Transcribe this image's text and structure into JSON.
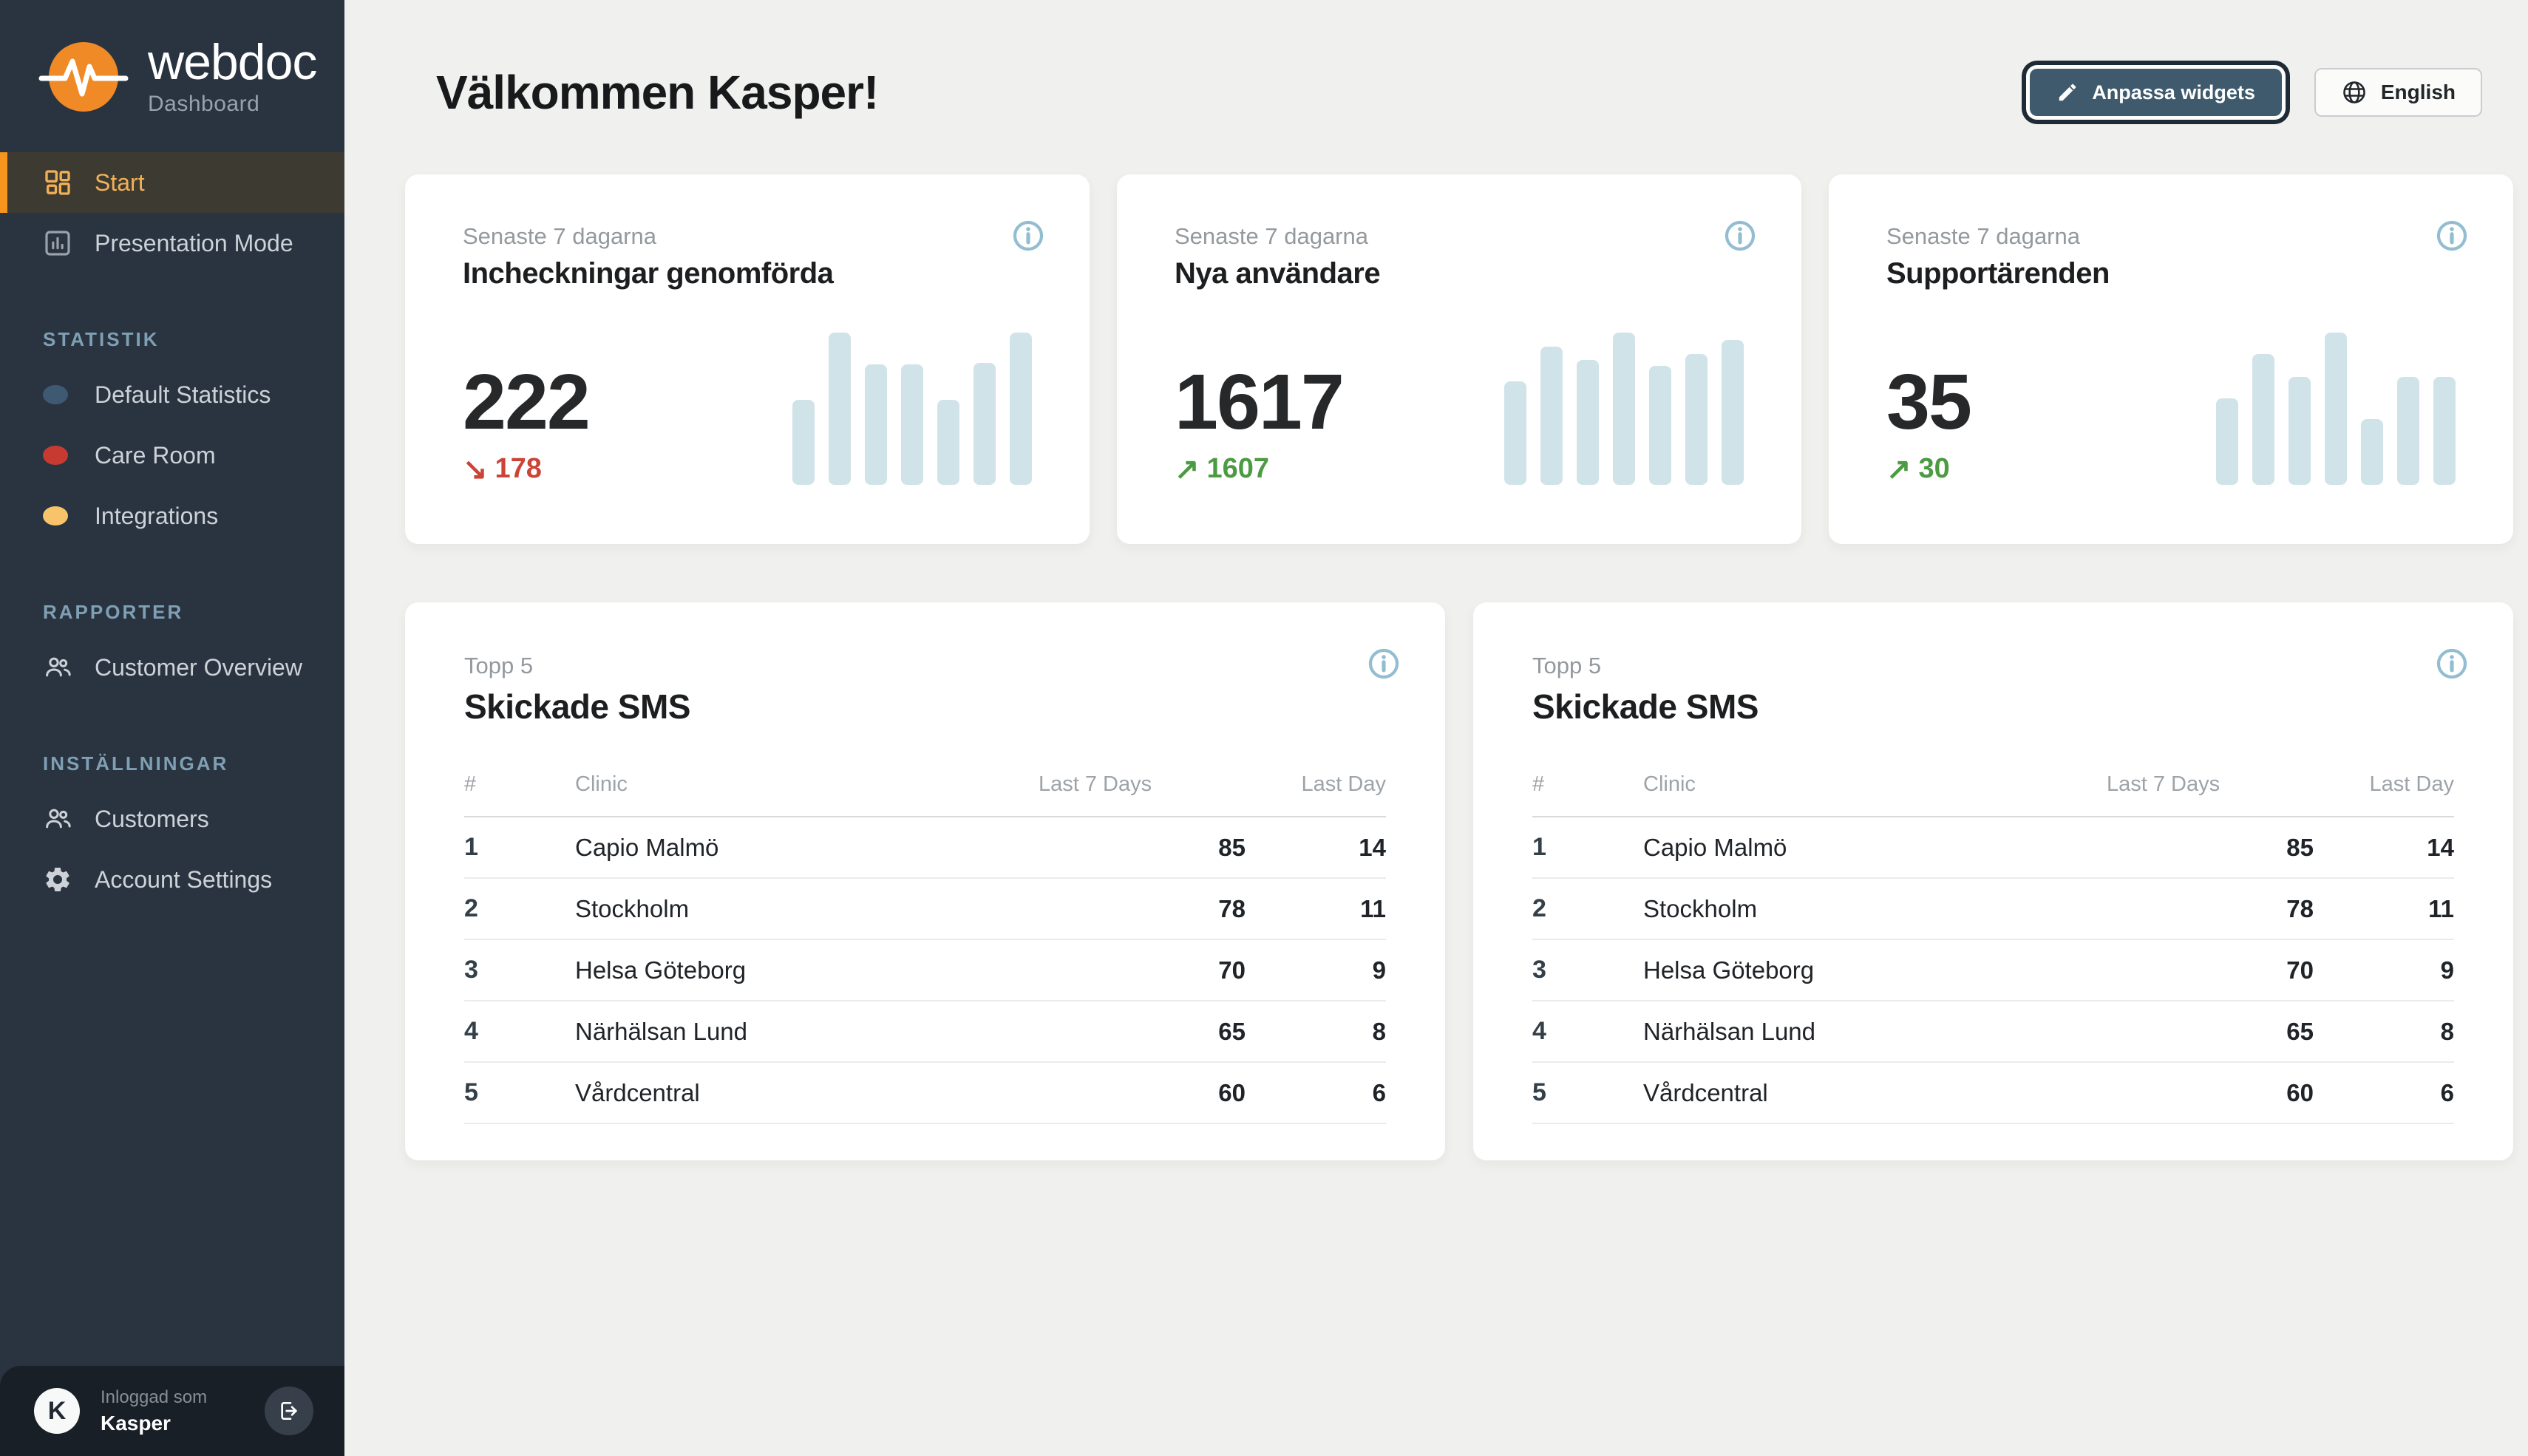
{
  "sidebar": {
    "brand": {
      "name": "webdoc",
      "subtitle": "Dashboard"
    },
    "nav": [
      {
        "label": "Start",
        "icon": "grid-icon",
        "active": true
      },
      {
        "label": "Presentation Mode",
        "icon": "chart-square-icon",
        "active": false
      }
    ],
    "sections": [
      {
        "title": "STATISTIK",
        "items": [
          {
            "label": "Default Statistics",
            "icon": "dot",
            "dot_color": "#3e5a72"
          },
          {
            "label": "Care Room",
            "icon": "dot",
            "dot_color": "#c63a32"
          },
          {
            "label": "Integrations",
            "icon": "dot",
            "dot_color": "#f9c469"
          }
        ]
      },
      {
        "title": "RAPPORTER",
        "items": [
          {
            "label": "Customer Overview",
            "icon": "people-icon"
          }
        ]
      },
      {
        "title": "INSTÄLLNINGAR",
        "items": [
          {
            "label": "Customers",
            "icon": "people-icon"
          },
          {
            "label": "Account Settings",
            "icon": "gear-icon"
          }
        ]
      }
    ],
    "footer": {
      "avatar_initial": "K",
      "logged_in_label": "Inloggad som",
      "username": "Kasper"
    }
  },
  "header": {
    "title": "Välkommen Kasper!",
    "customize_button": {
      "label": "Anpassa widgets",
      "icon": "pencil-icon"
    },
    "language_button": {
      "label": "English",
      "icon": "globe-icon"
    }
  },
  "stat_cards": [
    {
      "period": "Senaste 7 dagarna",
      "title": "Incheckningar genomförda",
      "value": "222",
      "trend_value": "178",
      "trend_direction": "down",
      "trend_arrow": "↘",
      "trend_color": "#cb4437",
      "bars": [
        56,
        100,
        79,
        79,
        56,
        80,
        100
      ]
    },
    {
      "period": "Senaste 7 dagarna",
      "title": "Nya användare",
      "value": "1617",
      "trend_value": "1607",
      "trend_direction": "up",
      "trend_arrow": "↗",
      "trend_color": "#4c9a42",
      "bars": [
        68,
        91,
        82,
        100,
        78,
        86,
        95
      ]
    },
    {
      "period": "Senaste 7 dagarna",
      "title": "Supportärenden",
      "value": "35",
      "trend_value": "30",
      "trend_direction": "up",
      "trend_arrow": "↗",
      "trend_color": "#4c9a42",
      "bars": [
        57,
        86,
        71,
        100,
        43,
        71,
        71
      ]
    }
  ],
  "table_cards": [
    {
      "period": "Topp 5",
      "title": "Skickade SMS",
      "columns": [
        "#",
        "Clinic",
        "Last 7 Days",
        "Last Day"
      ],
      "rows": [
        [
          "1",
          "Capio Malmö",
          "85",
          "14"
        ],
        [
          "2",
          "Stockholm",
          "78",
          "11"
        ],
        [
          "3",
          "Helsa Göteborg",
          "70",
          "9"
        ],
        [
          "4",
          "Närhälsan Lund",
          "65",
          "8"
        ],
        [
          "5",
          "Vårdcentral",
          "60",
          "6"
        ]
      ]
    },
    {
      "period": "Topp 5",
      "title": "Skickade SMS",
      "columns": [
        "#",
        "Clinic",
        "Last 7 Days",
        "Last Day"
      ],
      "rows": [
        [
          "1",
          "Capio Malmö",
          "85",
          "14"
        ],
        [
          "2",
          "Stockholm",
          "78",
          "11"
        ],
        [
          "3",
          "Helsa Göteborg",
          "70",
          "9"
        ],
        [
          "4",
          "Närhälsan Lund",
          "65",
          "8"
        ],
        [
          "5",
          "Vårdcentral",
          "60",
          "6"
        ]
      ]
    }
  ],
  "colors": {
    "accent_orange": "#f6951d",
    "bar_fill": "#d0e3e9",
    "info_icon": "#93bdd0",
    "trend_down": "#cb4437",
    "trend_up": "#4c9a42",
    "sidebar_bg": "#2a3440",
    "footer_bg": "#191f27",
    "page_bg": "#f0f0ee"
  }
}
